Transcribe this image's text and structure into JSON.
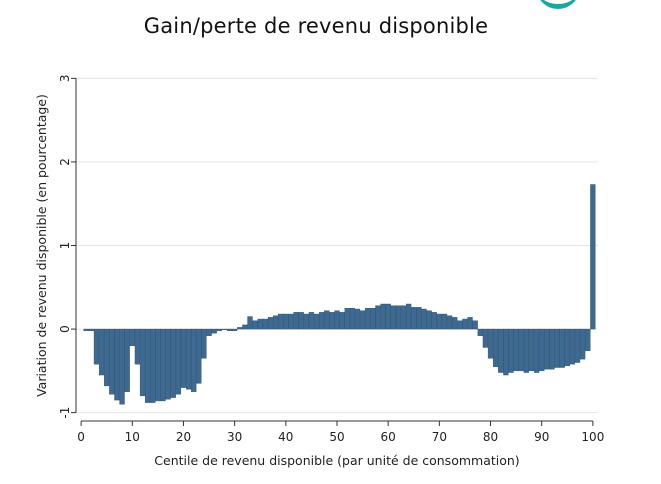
{
  "chart_data": {
    "type": "bar",
    "title": "Gain/perte de revenu disponible",
    "xlabel": "Centile de revenu disponible (par unité de consommation)",
    "ylabel": "Variation de revenu disponible (en pourcentage)",
    "xlim": [
      -1,
      101
    ],
    "ylim": [
      -1.1,
      3.1
    ],
    "xticks": [
      0,
      10,
      20,
      30,
      40,
      50,
      60,
      70,
      80,
      90,
      100
    ],
    "yticks": [
      -1,
      0,
      1,
      2,
      3
    ],
    "grid": true,
    "bar_color": "#3e6a92",
    "x": [
      1,
      2,
      3,
      4,
      5,
      6,
      7,
      8,
      9,
      10,
      11,
      12,
      13,
      14,
      15,
      16,
      17,
      18,
      19,
      20,
      21,
      22,
      23,
      24,
      25,
      26,
      27,
      28,
      29,
      30,
      31,
      32,
      33,
      34,
      35,
      36,
      37,
      38,
      39,
      40,
      41,
      42,
      43,
      44,
      45,
      46,
      47,
      48,
      49,
      50,
      51,
      52,
      53,
      54,
      55,
      56,
      57,
      58,
      59,
      60,
      61,
      62,
      63,
      64,
      65,
      66,
      67,
      68,
      69,
      70,
      71,
      72,
      73,
      74,
      75,
      76,
      77,
      78,
      79,
      80,
      81,
      82,
      83,
      84,
      85,
      86,
      87,
      88,
      89,
      90,
      91,
      92,
      93,
      94,
      95,
      96,
      97,
      98,
      99,
      100
    ],
    "values": [
      -0.02,
      -0.02,
      -0.42,
      -0.55,
      -0.68,
      -0.78,
      -0.85,
      -0.9,
      -0.75,
      -0.2,
      -0.42,
      -0.8,
      -0.88,
      -0.88,
      -0.86,
      -0.86,
      -0.84,
      -0.82,
      -0.78,
      -0.7,
      -0.72,
      -0.75,
      -0.65,
      -0.35,
      -0.08,
      -0.05,
      -0.02,
      0.0,
      -0.02,
      -0.02,
      0.02,
      0.05,
      0.15,
      0.1,
      0.12,
      0.12,
      0.14,
      0.16,
      0.18,
      0.18,
      0.18,
      0.2,
      0.2,
      0.18,
      0.2,
      0.18,
      0.2,
      0.22,
      0.2,
      0.22,
      0.2,
      0.25,
      0.25,
      0.24,
      0.22,
      0.25,
      0.25,
      0.28,
      0.3,
      0.3,
      0.28,
      0.28,
      0.28,
      0.3,
      0.26,
      0.26,
      0.24,
      0.22,
      0.2,
      0.18,
      0.18,
      0.16,
      0.14,
      0.1,
      0.12,
      0.14,
      0.1,
      -0.08,
      -0.22,
      -0.35,
      -0.45,
      -0.52,
      -0.55,
      -0.52,
      -0.5,
      -0.5,
      -0.52,
      -0.5,
      -0.52,
      -0.5,
      -0.48,
      -0.48,
      -0.46,
      -0.46,
      -0.44,
      -0.42,
      -0.4,
      -0.36,
      -0.26,
      1.73
    ]
  }
}
